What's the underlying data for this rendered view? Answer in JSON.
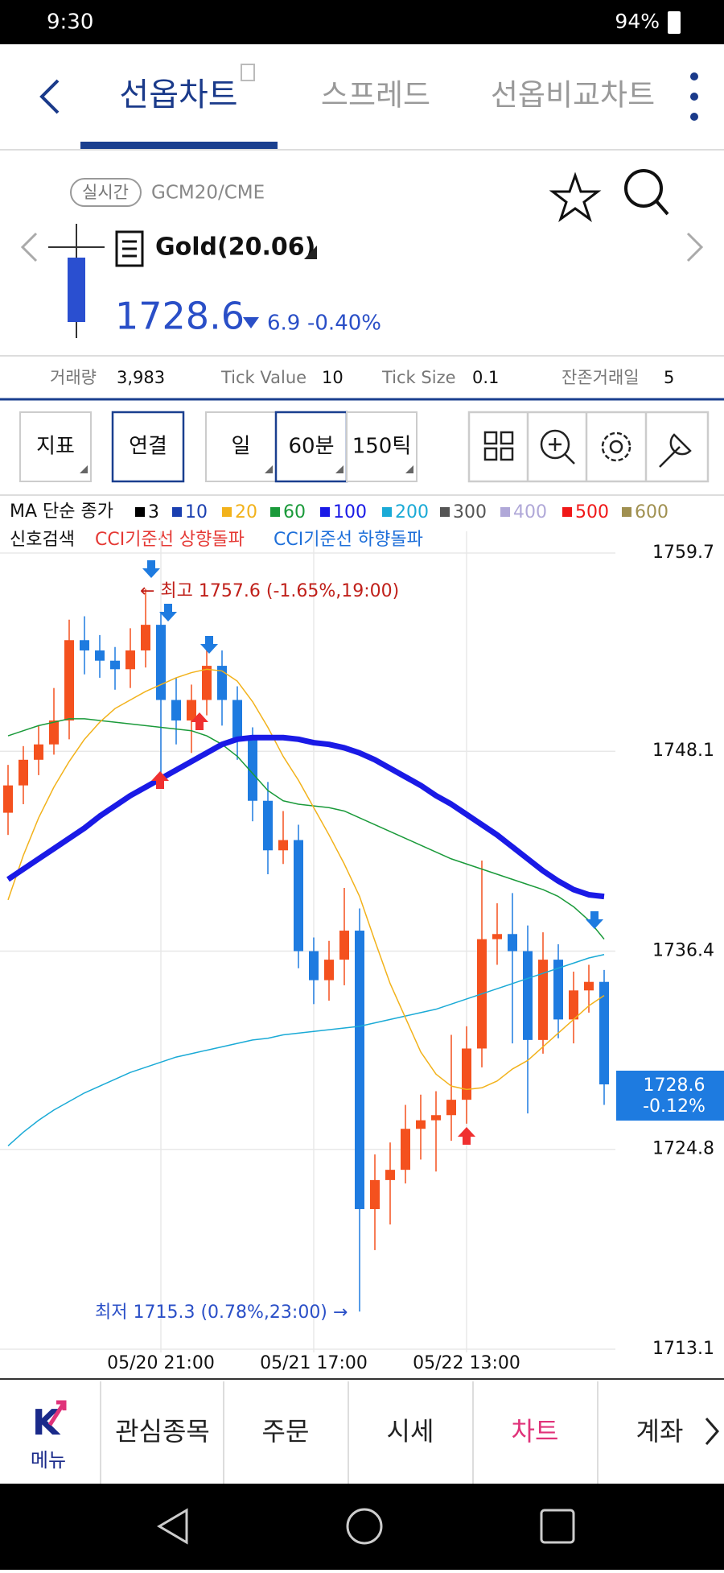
{
  "status_bar": {
    "time": "9:30",
    "battery": "94%"
  },
  "tabs": [
    "선옵차트",
    "스프레드",
    "선옵비교차트"
  ],
  "instrument": {
    "badge": "실시간",
    "code": "GCM20/CME",
    "name": "Gold(20.06)",
    "price": "1728.6",
    "change": "6.9",
    "change_pct": "-0.40%"
  },
  "stats": [
    {
      "label": "거래량",
      "value": "3,983"
    },
    {
      "label": "Tick Value",
      "value": "10"
    },
    {
      "label": "Tick Size",
      "value": "0.1"
    },
    {
      "label": "잔존거래일",
      "value": "5"
    }
  ],
  "toolbar": [
    "지표",
    "연결",
    "일",
    "60분",
    "150틱"
  ],
  "ma_legend": {
    "title": "MA 단순 종가",
    "items": [
      {
        "label": "3",
        "color": "#000000"
      },
      {
        "label": "10",
        "color": "#1a3fb0"
      },
      {
        "label": "20",
        "color": "#f2b21b"
      },
      {
        "label": "60",
        "color": "#1a9a3a"
      },
      {
        "label": "100",
        "color": "#1a1ae6"
      },
      {
        "label": "200",
        "color": "#1aaad6"
      },
      {
        "label": "300",
        "color": "#555555"
      },
      {
        "label": "400",
        "color": "#b0a8d8"
      },
      {
        "label": "500",
        "color": "#f01818"
      },
      {
        "label": "600",
        "color": "#a09050"
      }
    ]
  },
  "signals": {
    "title": "신호검색",
    "items": [
      {
        "label": "CCI기준선 상향돌파",
        "color": "#e53935"
      },
      {
        "label": "CCI기준선 하향돌파",
        "color": "#1e6fd9"
      }
    ]
  },
  "chart_data": {
    "type": "candlestick",
    "categories": [
      null,
      null,
      null,
      null,
      null,
      null,
      null,
      null,
      null,
      null,
      "05/20 21:00",
      null,
      null,
      null,
      null,
      null,
      null,
      null,
      null,
      null,
      "05/21 17:00",
      null,
      null,
      null,
      null,
      null,
      null,
      null,
      null,
      null,
      "05/22 13:00",
      null,
      null,
      null,
      null,
      null,
      null,
      null,
      null,
      null
    ],
    "open": [
      1744.5,
      1746.1,
      1747.6,
      1748.5,
      1749.9,
      1754.6,
      1754.0,
      1753.4,
      1752.9,
      1754.0,
      1755.5,
      1751.1,
      1749.9,
      1751.1,
      1753.1,
      1751.1,
      1748.8,
      1745.2,
      1742.3,
      1742.9,
      1736.4,
      1734.7,
      1735.9,
      1737.6,
      1721.3,
      1723.0,
      1723.6,
      1726.0,
      1726.5,
      1726.8,
      1727.7,
      1730.7,
      1737.1,
      1737.4,
      1736.4,
      1731.2,
      1735.9,
      1732.4,
      1734.1,
      1734.6
    ],
    "high": [
      1747.3,
      1748.4,
      1749.6,
      1751.8,
      1755.8,
      1756.0,
      1754.9,
      1754.2,
      1755.3,
      1757.6,
      1756.2,
      1752.4,
      1752.0,
      1754.3,
      1754.0,
      1751.9,
      1749.5,
      1746.3,
      1744.6,
      1743.8,
      1737.2,
      1737.0,
      1740.1,
      1738.9,
      1724.5,
      1725.2,
      1727.4,
      1728.0,
      1728.2,
      1731.5,
      1732.0,
      1741.7,
      1739.2,
      1739.8,
      1737.9,
      1737.5,
      1736.8,
      1735.2,
      1735.6,
      1735.3
    ],
    "low": [
      1743.2,
      1745.0,
      1746.7,
      1747.9,
      1748.8,
      1752.6,
      1752.4,
      1751.7,
      1751.8,
      1753.0,
      1746.8,
      1748.5,
      1748.0,
      1750.2,
      1749.6,
      1747.6,
      1744.0,
      1740.9,
      1741.5,
      1735.4,
      1733.3,
      1733.5,
      1734.4,
      1715.3,
      1718.9,
      1720.4,
      1722.8,
      1724.2,
      1723.5,
      1725.3,
      1726.3,
      1729.6,
      1735.6,
      1731.0,
      1726.9,
      1730.4,
      1731.3,
      1731.0,
      1732.8,
      1727.4
    ],
    "close": [
      1746.1,
      1747.6,
      1748.5,
      1749.9,
      1754.6,
      1754.0,
      1753.4,
      1752.9,
      1754.0,
      1755.5,
      1751.1,
      1749.9,
      1751.1,
      1753.1,
      1751.1,
      1748.8,
      1745.2,
      1742.3,
      1742.9,
      1736.4,
      1734.7,
      1735.9,
      1737.6,
      1721.3,
      1723.0,
      1723.6,
      1726.0,
      1726.5,
      1726.8,
      1727.7,
      1730.7,
      1737.1,
      1737.4,
      1736.4,
      1731.2,
      1735.9,
      1732.4,
      1734.1,
      1734.6,
      1728.6
    ],
    "up_color": "#f4511e",
    "down_color": "#1e7be0",
    "series": [
      {
        "color": "#1aaad6",
        "width": 1.5,
        "values": [
          1725.0,
          1725.8,
          1726.5,
          1727.1,
          1727.6,
          1728.1,
          1728.5,
          1728.9,
          1729.3,
          1729.6,
          1729.9,
          1730.2,
          1730.4,
          1730.6,
          1730.8,
          1731.0,
          1731.2,
          1731.3,
          1731.5,
          1731.6,
          1731.7,
          1731.8,
          1731.9,
          1732.0,
          1732.2,
          1732.4,
          1732.6,
          1732.8,
          1733.0,
          1733.3,
          1733.6,
          1733.9,
          1734.2,
          1734.5,
          1734.8,
          1735.1,
          1735.4,
          1735.7,
          1736.0,
          1736.2
        ]
      },
      {
        "color": "#1a9a3a",
        "width": 1.5,
        "values": [
          1749.0,
          1749.3,
          1749.6,
          1749.8,
          1750.0,
          1750.0,
          1749.9,
          1749.8,
          1749.7,
          1749.6,
          1749.5,
          1749.4,
          1749.3,
          1749.0,
          1748.5,
          1747.8,
          1746.8,
          1745.8,
          1745.2,
          1745.0,
          1744.9,
          1744.8,
          1744.6,
          1744.2,
          1743.8,
          1743.4,
          1743.0,
          1742.6,
          1742.2,
          1741.8,
          1741.5,
          1741.2,
          1740.9,
          1740.6,
          1740.3,
          1740.0,
          1739.6,
          1739.0,
          1738.2,
          1737.1
        ]
      },
      {
        "color": "#f2b21b",
        "width": 1.5,
        "values": [
          1739.4,
          1742.0,
          1744.2,
          1746.0,
          1747.5,
          1748.8,
          1749.8,
          1750.6,
          1751.1,
          1751.6,
          1752.0,
          1752.4,
          1752.7,
          1752.9,
          1752.8,
          1752.2,
          1751.0,
          1749.5,
          1747.8,
          1746.4,
          1744.8,
          1743.2,
          1741.5,
          1739.6,
          1737.0,
          1734.5,
          1732.5,
          1730.5,
          1729.2,
          1728.5,
          1728.3,
          1728.4,
          1728.8,
          1729.5,
          1730.0,
          1730.8,
          1731.6,
          1732.4,
          1733.2,
          1733.8
        ]
      },
      {
        "color": "#1a1ae6",
        "width": 7,
        "values": [
          1740.6,
          1741.2,
          1741.8,
          1742.4,
          1743.0,
          1743.6,
          1744.3,
          1744.9,
          1745.5,
          1746.0,
          1746.5,
          1747.0,
          1747.5,
          1748.0,
          1748.5,
          1748.8,
          1748.9,
          1748.9,
          1748.9,
          1748.8,
          1748.6,
          1748.5,
          1748.3,
          1748.0,
          1747.6,
          1747.1,
          1746.6,
          1746.1,
          1745.5,
          1745.0,
          1744.4,
          1743.8,
          1743.2,
          1742.5,
          1741.8,
          1741.1,
          1740.5,
          1740.0,
          1739.7,
          1739.6
        ]
      }
    ],
    "ylim": [
      1713.1,
      1759.7
    ],
    "yticks": [
      1759.7,
      1748.1,
      1736.4,
      1724.8,
      1713.1
    ],
    "grid": true,
    "annotations": [
      "← 최고 1757.6 (-1.65%,19:00)",
      "최저 1715.3 (0.78%,23:00) →"
    ],
    "last_price": {
      "value": "1728.6",
      "change_pct": "-0.12%"
    }
  },
  "bottom_nav": {
    "menu": "메뉴",
    "items": [
      "관심종목",
      "주문",
      "시세",
      "차트",
      "계좌"
    ]
  }
}
